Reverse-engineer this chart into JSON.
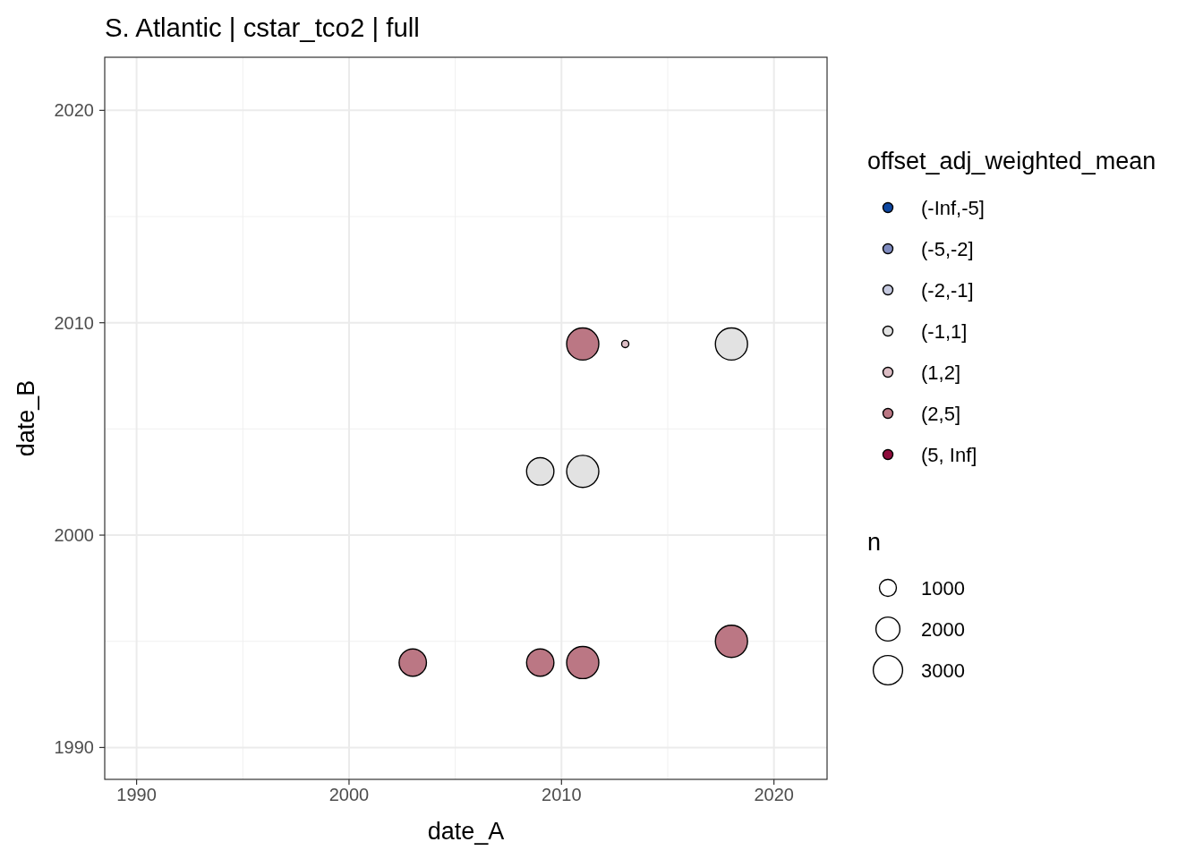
{
  "chart_data": {
    "type": "bubble",
    "title": "S. Atlantic | cstar_tco2 | full",
    "xlabel": "date_A",
    "ylabel": "date_B",
    "legend_title": "offset_adj_weighted_mean",
    "annotations": [
      "n"
    ],
    "xlim": [
      1988.5,
      2022.5
    ],
    "xticks": [
      1990,
      2000,
      2010,
      2020
    ],
    "ylim": [
      1988.5,
      2022.5
    ],
    "yticks": [
      1990,
      2000,
      2010,
      2020
    ],
    "grid": true,
    "legend": "right",
    "marker": "circle",
    "size_legend": [
      1000,
      2000,
      3000
    ],
    "series": [
      {
        "name": "(-Inf,-5]",
        "color": "#0d47a1"
      },
      {
        "name": "(-5,-2]",
        "color": "#7f8bbf"
      },
      {
        "name": "(-2,-1]",
        "color": "#c5c9df"
      },
      {
        "name": "(-1,1]",
        "color": "#e2e2e2",
        "x": [
          2018,
          2009,
          2011
        ],
        "values": [
          2009,
          2003,
          2003
        ],
        "sizes": [
          3600,
          2600,
          3600
        ]
      },
      {
        "name": "(1,2]",
        "color": "#dcbdc4",
        "x": [
          2013
        ],
        "values": [
          2009
        ],
        "sizes": [
          180
        ]
      },
      {
        "name": "(2,5]",
        "color": "#bb7784",
        "x": [
          2011,
          2003,
          2009,
          2011,
          2018
        ],
        "values": [
          2009,
          1994,
          1994,
          1994,
          1995
        ],
        "sizes": [
          3600,
          2600,
          2600,
          3600,
          3600
        ]
      },
      {
        "name": "(5, Inf]",
        "color": "#8e0c3c"
      }
    ]
  }
}
